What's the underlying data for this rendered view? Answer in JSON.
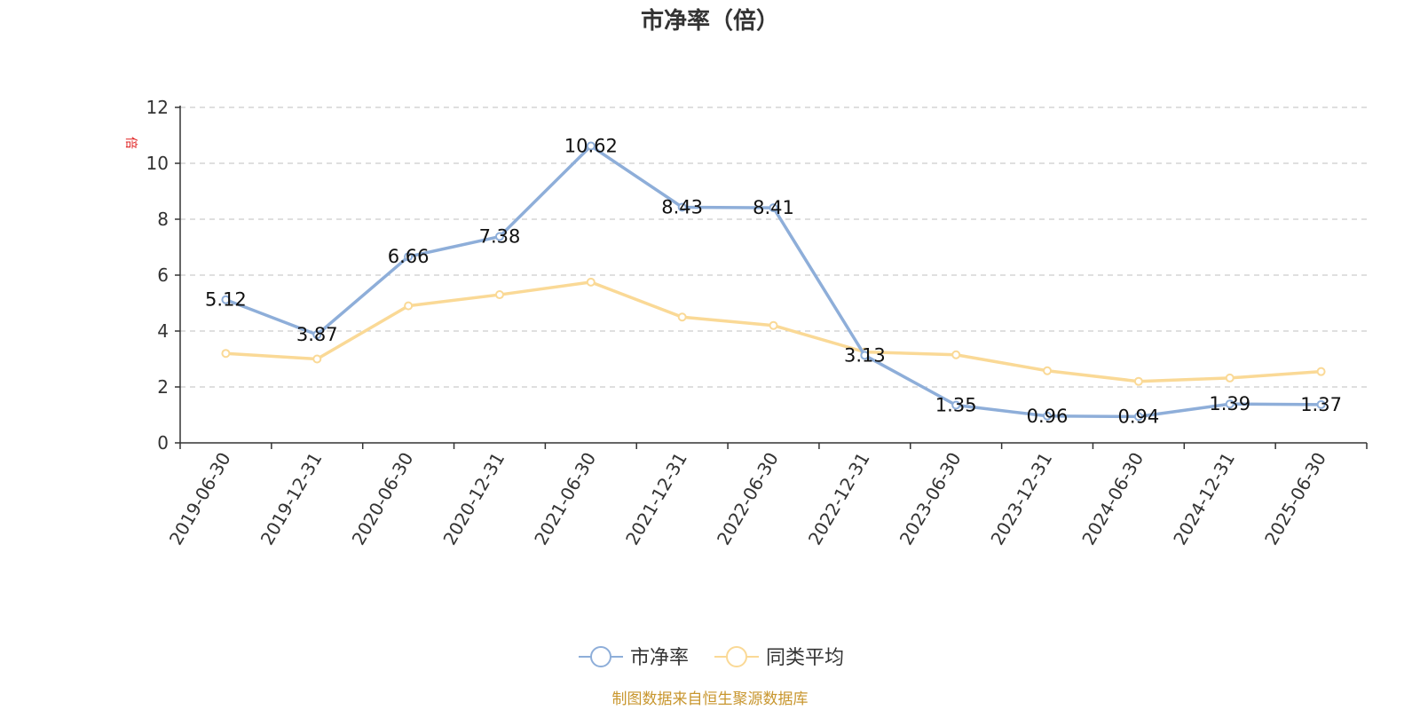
{
  "chart_data": {
    "type": "line",
    "title": "市净率（倍）",
    "ylabel": "倍",
    "ylim": [
      0,
      12
    ],
    "yticks": [
      0,
      2,
      4,
      6,
      8,
      10,
      12
    ],
    "grid": true,
    "legend_position": "bottom-center",
    "categories": [
      "2019-06-30",
      "2019-12-31",
      "2020-06-30",
      "2020-12-31",
      "2021-06-30",
      "2021-12-31",
      "2022-06-30",
      "2022-12-31",
      "2023-06-30",
      "2023-12-31",
      "2024-06-30",
      "2024-12-31",
      "2025-06-30"
    ],
    "series": [
      {
        "name": "市净率",
        "color": "#8eaed9",
        "values": [
          5.12,
          3.87,
          6.66,
          7.38,
          10.62,
          8.43,
          8.41,
          3.13,
          1.35,
          0.96,
          0.94,
          1.39,
          1.37
        ],
        "labels": [
          "5.12",
          "3.87",
          "6.66",
          "7.38",
          "10.62",
          "8.43",
          "8.41",
          "3.13",
          "1.35",
          "0.96",
          "0.94",
          "1.39",
          "1.37"
        ]
      },
      {
        "name": "同类平均",
        "color": "#fad996",
        "values": [
          3.2,
          3.0,
          4.9,
          5.3,
          5.75,
          4.5,
          4.2,
          3.25,
          3.15,
          2.58,
          2.2,
          2.32,
          2.55
        ]
      }
    ]
  },
  "source_note": "制图数据来自恒生聚源数据库"
}
